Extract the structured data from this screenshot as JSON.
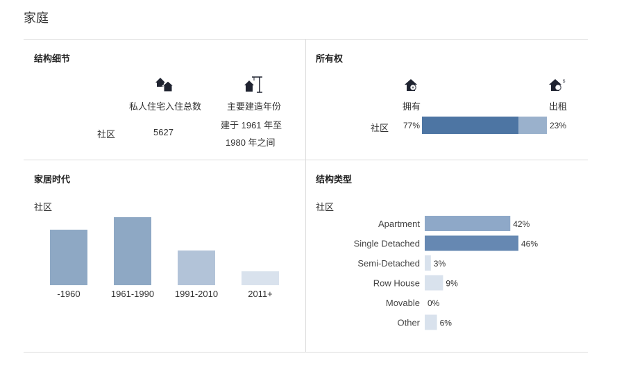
{
  "page_title": "家庭",
  "structure_details": {
    "title": "结构细节",
    "col1_header": "私人住宅入住总数",
    "col2_header": "主要建造年份",
    "row_label": "社区",
    "total_dwellings": "5627",
    "build_period_line1": "建于 1961 年至",
    "build_period_line2": "1980 年之间",
    "icons": [
      "houses-icon",
      "house-crane-icon"
    ]
  },
  "ownership": {
    "title": "所有权",
    "own_label": "拥有",
    "rent_label": "出租",
    "row_label": "社区",
    "own_pct_label": "77%",
    "rent_pct_label": "23%",
    "own_value": 77,
    "rent_value": 23,
    "own_color": "#4d75a3",
    "rent_color": "#9ab1cc",
    "icons": [
      "house-key-icon",
      "house-money-icon"
    ]
  },
  "chart_data": [
    {
      "type": "bar",
      "title": "家居时代",
      "subtitle": "社区",
      "categories": [
        "-1960",
        "1961-1990",
        "1991-2010",
        "2011+"
      ],
      "values": [
        40,
        49,
        25,
        10
      ],
      "colors": [
        "#8ea8c4",
        "#8ea8c4",
        "#b2c3d8",
        "#d9e2ed"
      ],
      "ylim": [
        0,
        50
      ]
    },
    {
      "type": "bar",
      "orientation": "horizontal",
      "title": "结构类型",
      "subtitle": "社区",
      "categories": [
        "Apartment",
        "Single Detached",
        "Semi-Detached",
        "Row House",
        "Movable",
        "Other"
      ],
      "values": [
        42,
        46,
        3,
        9,
        0,
        6
      ],
      "value_labels": [
        "42%",
        "46%",
        "3%",
        "9%",
        "0%",
        "6%"
      ],
      "colors": [
        "#8ea8c8",
        "#6688b2",
        "#d9e2ed",
        "#d9e2ed",
        "#d9e2ed",
        "#d9e2ed"
      ],
      "xlim": [
        0,
        46
      ]
    }
  ]
}
